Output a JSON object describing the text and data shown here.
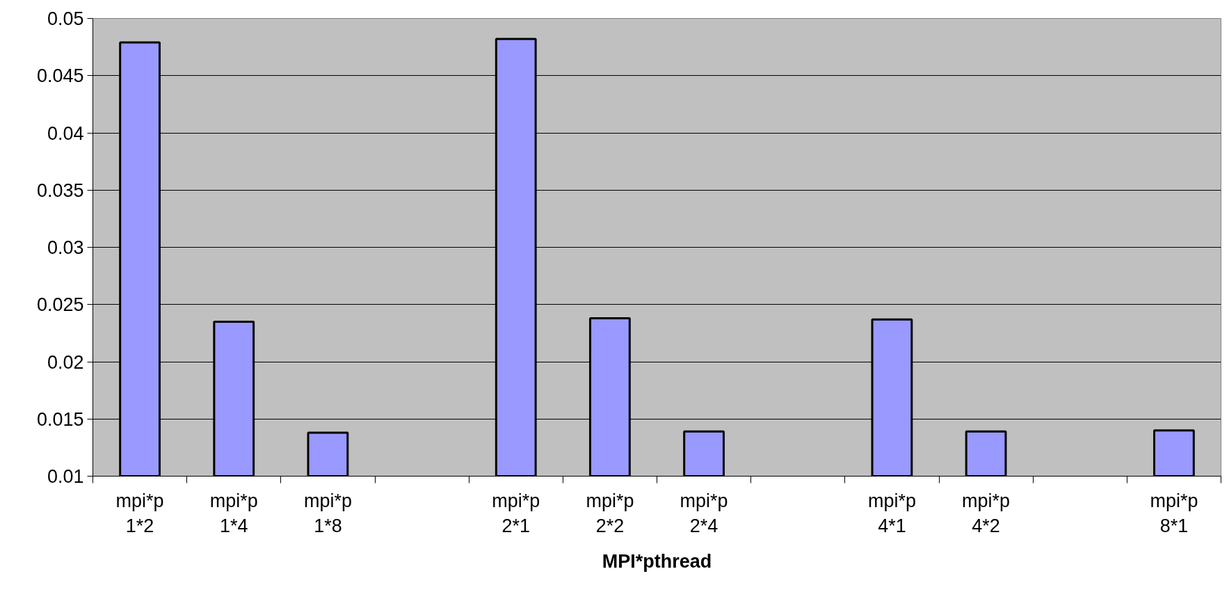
{
  "chart_data": {
    "type": "bar",
    "xlabel": "MPI*pthread",
    "categories": [
      "mpi*p\n1*2",
      "mpi*p\n1*4",
      "mpi*p\n1*8",
      null,
      "mpi*p\n2*1",
      "mpi*p\n2*2",
      "mpi*p\n2*4",
      null,
      "mpi*p\n4*1",
      "mpi*p\n4*2",
      null,
      "mpi*p\n8*1"
    ],
    "values": [
      0.0479,
      0.0235,
      0.0138,
      null,
      0.0482,
      0.0238,
      0.0139,
      null,
      0.0237,
      0.0139,
      null,
      0.014
    ],
    "color": "#9999ff",
    "ylim": [
      0.01,
      0.05
    ],
    "yticks": [
      0.01,
      0.015,
      0.02,
      0.025,
      0.03,
      0.035,
      0.04,
      0.045,
      0.05
    ],
    "grid": "y"
  }
}
